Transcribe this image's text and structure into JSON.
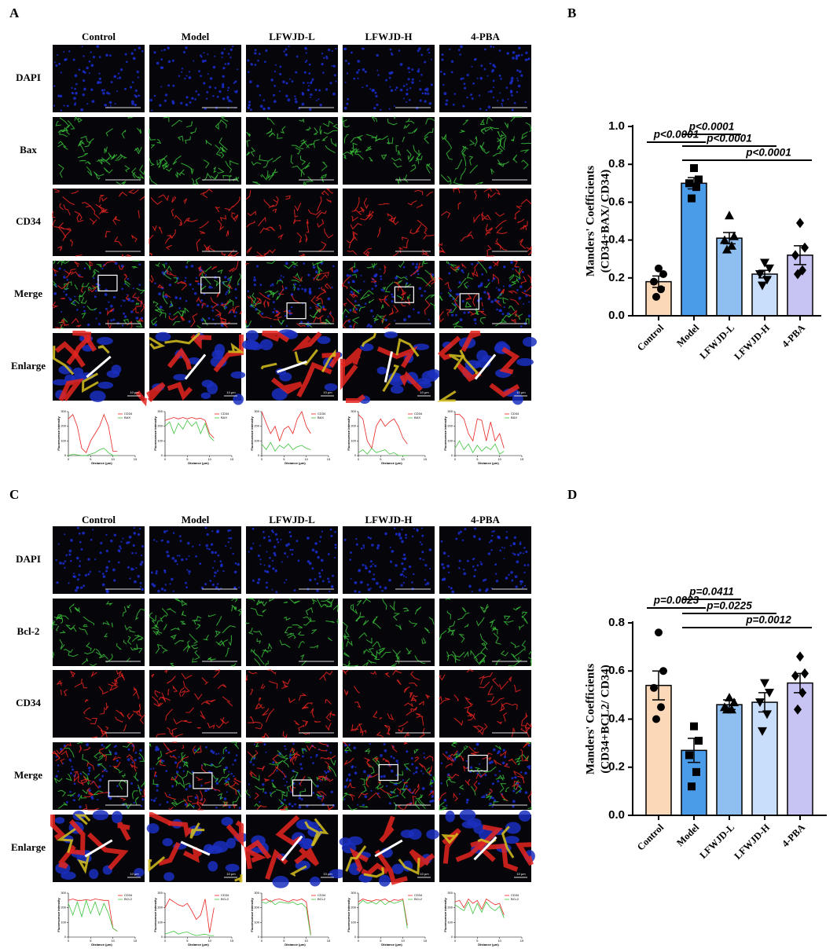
{
  "panels": [
    {
      "letter": "A",
      "columns": [
        "Control",
        "Model",
        "LFWJD-L",
        "LFWJD-H",
        "4-PBA"
      ],
      "rows": [
        "DAPI",
        "Bax",
        "CD34",
        "Merge",
        "Enlarge"
      ],
      "scale_label": "10 μm",
      "profile": {
        "legend": [
          "CD34",
          "BAX"
        ],
        "ylabel": "Fluorescence intensity",
        "xlabel": "Distance (μm)",
        "xlim": [
          0,
          15
        ],
        "ylim": [
          0,
          300
        ],
        "xticks": [
          0,
          5,
          10,
          15
        ],
        "yticks": [
          0,
          100,
          200,
          300
        ],
        "x": [
          0,
          1,
          2,
          3,
          4,
          5,
          6,
          7,
          8,
          9,
          10,
          11
        ],
        "colors": [
          "#e8231f",
          "#3ec43e"
        ],
        "curves": [
          [
            [
              250,
              280,
              200,
              50,
              20,
              100,
              150,
              200,
              280,
              200,
              30,
              30
            ],
            [
              0,
              10,
              5,
              0,
              0,
              10,
              20,
              40,
              50,
              20,
              0,
              0
            ]
          ],
          [
            [
              240,
              250,
              260,
              250,
              260,
              250,
              260,
              250,
              255,
              240,
              150,
              120
            ],
            [
              200,
              230,
              150,
              220,
              180,
              240,
              200,
              230,
              150,
              220,
              130,
              100
            ]
          ],
          [
            [
              300,
              220,
              150,
              200,
              100,
              180,
              200,
              150,
              250,
              300,
              200,
              150
            ],
            [
              80,
              40,
              90,
              30,
              70,
              50,
              80,
              40,
              60,
              70,
              50,
              40
            ]
          ],
          [
            [
              280,
              250,
              100,
              50,
              200,
              250,
              200,
              230,
              250,
              200,
              120,
              80
            ],
            [
              20,
              40,
              10,
              50,
              20,
              30,
              40,
              10,
              20,
              0,
              0,
              0
            ]
          ],
          [
            [
              280,
              280,
              250,
              150,
              100,
              250,
              240,
              100,
              230,
              100,
              150,
              50
            ],
            [
              50,
              100,
              40,
              80,
              20,
              70,
              30,
              60,
              40,
              80,
              10,
              30
            ]
          ]
        ]
      }
    },
    {
      "letter": "C",
      "columns": [
        "Control",
        "Model",
        "LFWJD-L",
        "LFWJD-H",
        "4-PBA"
      ],
      "rows": [
        "DAPI",
        "Bcl-2",
        "CD34",
        "Merge",
        "Enlarge"
      ],
      "scale_label": "10 μm",
      "profile": {
        "legend": [
          "CD34",
          "BCL2"
        ],
        "ylabel": "Fluorescence intensity",
        "xlabel": "Distance (μm)",
        "xlim": [
          0,
          15
        ],
        "ylim": [
          0,
          300
        ],
        "xticks": [
          0,
          5,
          10,
          15
        ],
        "yticks": [
          0,
          100,
          200,
          300
        ],
        "x": [
          0,
          1,
          2,
          3,
          4,
          5,
          6,
          7,
          8,
          9,
          10,
          11
        ],
        "colors": [
          "#e8231f",
          "#3ec43e"
        ],
        "curves": [
          [
            [
              250,
              260,
              250,
              250,
              255,
              250,
              260,
              255,
              250,
              250,
              60,
              40
            ],
            [
              230,
              150,
              240,
              140,
              250,
              160,
              240,
              150,
              230,
              160,
              60,
              40
            ]
          ],
          [
            [
              200,
              260,
              240,
              220,
              210,
              230,
              180,
              120,
              150,
              260,
              30,
              200
            ],
            [
              20,
              30,
              40,
              20,
              30,
              35,
              20,
              10,
              15,
              20,
              10,
              10
            ]
          ],
          [
            [
              250,
              260,
              240,
              255,
              260,
              250,
              240,
              255,
              250,
              260,
              240,
              20
            ],
            [
              240,
              230,
              250,
              220,
              240,
              235,
              230,
              240,
              220,
              230,
              200,
              10
            ]
          ],
          [
            [
              240,
              260,
              250,
              245,
              255,
              250,
              260,
              240,
              255,
              250,
              260,
              80
            ],
            [
              220,
              250,
              230,
              240,
              225,
              250,
              220,
              245,
              230,
              240,
              250,
              60
            ]
          ],
          [
            [
              240,
              250,
              200,
              260,
              230,
              250,
              190,
              260,
              240,
              220,
              230,
              150
            ],
            [
              220,
              200,
              180,
              240,
              160,
              230,
              170,
              240,
              200,
              180,
              210,
              130
            ]
          ]
        ]
      }
    }
  ],
  "chart_data": [
    {
      "type": "bar",
      "label": "B",
      "ylabel": [
        "Manders' Coefficients",
        "(CD34+BAX/ CD34)"
      ],
      "categories": [
        "Control",
        "Model",
        "LFWJD-L",
        "LFWJD-H",
        "4-PBA"
      ],
      "values": [
        0.18,
        0.7,
        0.41,
        0.22,
        0.32
      ],
      "errors": [
        0.03,
        0.03,
        0.03,
        0.02,
        0.05
      ],
      "points": [
        [
          0.25,
          0.22,
          0.18,
          0.14,
          0.1
        ],
        [
          0.78,
          0.72,
          0.7,
          0.68,
          0.62
        ],
        [
          0.53,
          0.42,
          0.4,
          0.37,
          0.35
        ],
        [
          0.28,
          0.25,
          0.22,
          0.19,
          0.16
        ],
        [
          0.49,
          0.36,
          0.32,
          0.24,
          0.22
        ]
      ],
      "colors": [
        "#fbd8b7",
        "#4a9be8",
        "#8fbff0",
        "#c9defa",
        "#c7c3f3"
      ],
      "markers": [
        "circle",
        "square",
        "triangle",
        "triangle-down",
        "diamond"
      ],
      "ylim": [
        0,
        1
      ],
      "yticks": [
        {
          "value": 0,
          "label": "0.0"
        },
        0.2,
        0.4,
        0.6,
        0.8,
        {
          "value": 1,
          "label": "1.0"
        }
      ],
      "comparisons": [
        {
          "from": 0,
          "to": 1,
          "text": "p<0.0001"
        },
        {
          "from": 1,
          "to": 2,
          "text": "p<0.0001"
        },
        {
          "from": 1,
          "to": 3,
          "text": "p<0.0001"
        },
        {
          "from": 1,
          "to": 4,
          "text": "p<0.0001"
        }
      ]
    },
    {
      "type": "bar",
      "label": "D",
      "ylabel": [
        "Manders' Coefficients",
        "(CD34+BCL2/ CD34)"
      ],
      "categories": [
        "Control",
        "Model",
        "LFWJD-L",
        "LFWJD-H",
        "4-PBA"
      ],
      "values": [
        0.54,
        0.27,
        0.46,
        0.47,
        0.55
      ],
      "errors": [
        0.06,
        0.05,
        0.02,
        0.04,
        0.04
      ],
      "points": [
        [
          0.76,
          0.6,
          0.53,
          0.45,
          0.4
        ],
        [
          0.37,
          0.31,
          0.25,
          0.18,
          0.12
        ],
        [
          0.49,
          0.47,
          0.45,
          0.44,
          0.44
        ],
        [
          0.55,
          0.51,
          0.47,
          0.42,
          0.35
        ],
        [
          0.66,
          0.59,
          0.58,
          0.51,
          0.44
        ]
      ],
      "colors": [
        "#fbd8b7",
        "#4a9be8",
        "#8fbff0",
        "#c9defa",
        "#c7c3f3"
      ],
      "markers": [
        "circle",
        "square",
        "triangle",
        "triangle-down",
        "diamond"
      ],
      "ylim": [
        0,
        0.8
      ],
      "yticks": [
        {
          "value": 0,
          "label": "0.0"
        },
        0.2,
        0.4,
        0.6,
        0.8
      ],
      "comparisons": [
        {
          "from": 0,
          "to": 1,
          "text": "p=0.0023"
        },
        {
          "from": 1,
          "to": 2,
          "text": "p=0.0411"
        },
        {
          "from": 1,
          "to": 3,
          "text": "p=0.0225"
        },
        {
          "from": 1,
          "to": 4,
          "text": "p=0.0012"
        }
      ]
    }
  ]
}
